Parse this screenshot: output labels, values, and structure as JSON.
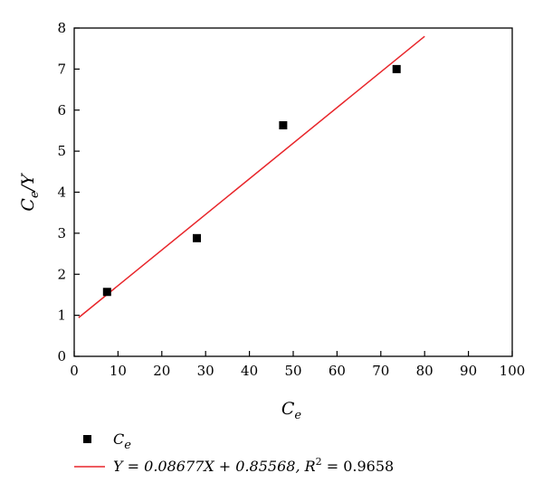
{
  "chart_data": {
    "type": "scatter",
    "xlabel": "Ce",
    "ylabel": "Ce/Y",
    "xlim": [
      0,
      100
    ],
    "ylim": [
      0,
      8
    ],
    "x_ticks": [
      "0",
      "10",
      "20",
      "30",
      "40",
      "50",
      "60",
      "70",
      "80",
      "90",
      "100"
    ],
    "y_ticks": [
      "0",
      "1",
      "2",
      "3",
      "4",
      "5",
      "6",
      "7",
      "8"
    ],
    "grid": false,
    "legend_position": "bottom",
    "series": [
      {
        "name": "Ce",
        "kind": "scatter",
        "marker": "square",
        "color": "#000000",
        "x": [
          7.5,
          28,
          47.7,
          73.6
        ],
        "y": [
          1.57,
          2.88,
          5.63,
          7.0
        ]
      },
      {
        "name": "Y = 0.08677X + 0.85568, R² = 0.9658",
        "kind": "line",
        "color": "#e8252a",
        "slope": 0.08677,
        "intercept": 0.85568,
        "x_range": [
          1,
          80
        ]
      }
    ],
    "legend": {
      "scatter_label_main": "C",
      "scatter_label_sub": "e",
      "fit_equation": "Y = 0.08677X + 0.85568, ",
      "fit_r": "R",
      "fit_r_sup": "2",
      "fit_r_value": " = 0.9658"
    },
    "axis_titles": {
      "x_main": "C",
      "x_sub": "e",
      "y_main": "C",
      "y_sub": "e",
      "y_rest": "/Y"
    }
  }
}
